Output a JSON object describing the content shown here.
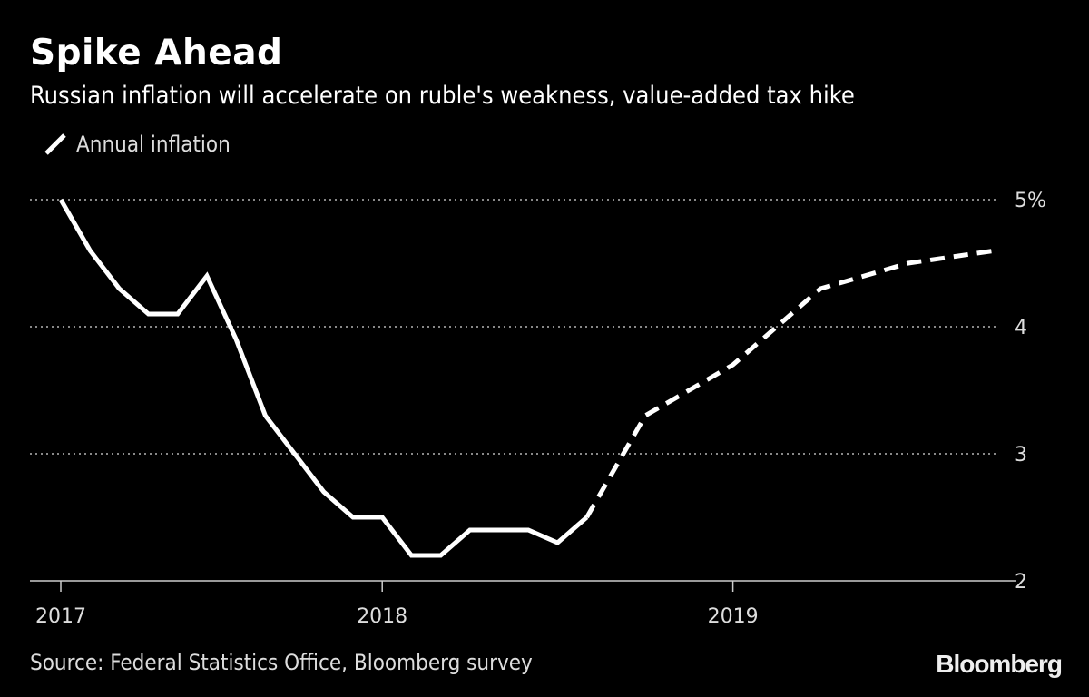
{
  "chart_data": {
    "type": "line",
    "title": "Spike Ahead",
    "subtitle": "Russian inflation will accelerate on ruble's weakness, value-added tax hike",
    "legend": [
      "Annual inflation"
    ],
    "legend_placement": "top-left",
    "ylim": [
      2,
      5
    ],
    "y_ticks": [
      "2",
      "3",
      "4",
      "5%"
    ],
    "y_tick_values": [
      2,
      3,
      4,
      5
    ],
    "x_ticks": [
      {
        "label": "2017",
        "month": "2017-01"
      },
      {
        "label": "2018",
        "month": "2017-12"
      },
      {
        "label": "2019",
        "month": "2018-12"
      }
    ],
    "grid": "dotted horizontal",
    "series": [
      {
        "name": "Annual inflation",
        "style": "solid",
        "x": [
          "2017-01",
          "2017-02",
          "2017-03",
          "2017-04",
          "2017-05",
          "2017-06",
          "2017-07",
          "2017-08",
          "2017-09",
          "2017-10",
          "2017-11",
          "2017-12",
          "2018-01",
          "2018-02",
          "2018-03",
          "2018-04",
          "2018-05",
          "2018-06",
          "2018-07"
        ],
        "values": [
          5.0,
          4.6,
          4.3,
          4.1,
          4.1,
          4.4,
          3.9,
          3.3,
          3.0,
          2.7,
          2.5,
          2.5,
          2.2,
          2.2,
          2.4,
          2.4,
          2.4,
          2.3,
          2.5
        ]
      },
      {
        "name": "Annual inflation",
        "style": "dashed",
        "x": [
          "2018-07",
          "2018-09",
          "2018-12",
          "2019-03",
          "2019-06",
          "2019-09"
        ],
        "values": [
          2.5,
          3.3,
          3.7,
          4.3,
          4.5,
          4.6
        ]
      }
    ],
    "colors": {
      "line": "#ffffff",
      "grid": "#888888",
      "background": "#000000"
    }
  },
  "source": "Source: Federal Statistics Office, Bloomberg survey",
  "logo": "Bloomberg"
}
